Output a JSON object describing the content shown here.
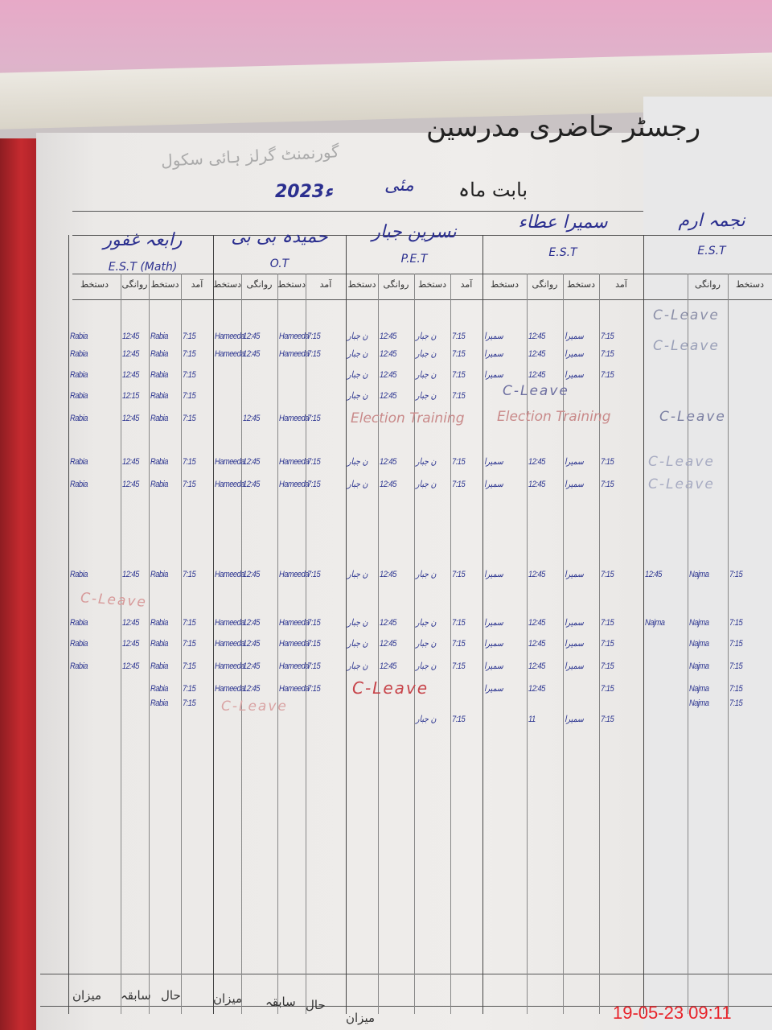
{
  "register": {
    "title": "رجسٹر حاضری مدرسین",
    "school": "گورنمنٹ گرلز ہائی سکول",
    "month_label": "بابت ماہ",
    "month": "مئی",
    "year": "2023ء"
  },
  "sub_headers": [
    "دستخط",
    "روانگی",
    "دستخط",
    "آمد"
  ],
  "teachers": [
    {
      "name": "رابعہ غفور",
      "designation": "E.S.T (Math)"
    },
    {
      "name": "حمیدہ بی بی",
      "designation": "O.T"
    },
    {
      "name": "نسرین جبار",
      "designation": "P.E.T"
    },
    {
      "name": "سمیرا عطاء",
      "designation": "E.S.T"
    },
    {
      "name": "نجمہ ارم",
      "designation": "E.S.T"
    }
  ],
  "rows": [
    [
      "Rabia",
      "12:45",
      "Rabia",
      "7:15",
      "Hameeda",
      "12:45",
      "Hameeda",
      "7:15",
      "ن جبار",
      "12:45",
      "ن جبار",
      "7:15",
      "سمیرا",
      "12:45",
      "سمیرا",
      "7:15",
      "",
      "",
      ""
    ],
    [
      "Rabia",
      "12:45",
      "Rabia",
      "7:15",
      "Hameeda",
      "12:45",
      "Hameeda",
      "7:15",
      "ن جبار",
      "12:45",
      "ن جبار",
      "7:15",
      "سمیرا",
      "12:45",
      "سمیرا",
      "7:15",
      "",
      "",
      ""
    ],
    [
      "Rabia",
      "12:45",
      "Rabia",
      "7:15",
      "",
      "",
      "",
      "",
      "ن جبار",
      "12:45",
      "ن جبار",
      "7:15",
      "سمیرا",
      "12:45",
      "سمیرا",
      "7:15",
      "",
      "",
      ""
    ],
    [
      "Rabia",
      "12:15",
      "Rabia",
      "7:15",
      "",
      "",
      "",
      "",
      "ن جبار",
      "12:45",
      "ن جبار",
      "7:15",
      "",
      "",
      "",
      "",
      "",
      "",
      ""
    ],
    [
      "Rabia",
      "12:45",
      "Rabia",
      "7:15",
      "",
      "12:45",
      "Hameeda",
      "7:15",
      "",
      "",
      "",
      "",
      "",
      "",
      "",
      "",
      "",
      "",
      ""
    ],
    [
      "Rabia",
      "12:45",
      "Rabia",
      "7:15",
      "Hameeda",
      "12:45",
      "Hameeda",
      "7:15",
      "ن جبار",
      "12:45",
      "ن جبار",
      "7:15",
      "سمیرا",
      "12:45",
      "سمیرا",
      "7:15",
      "",
      "",
      ""
    ],
    [
      "Rabia",
      "12:45",
      "Rabia",
      "7:15",
      "Hameeda",
      "12:45",
      "Hameeda",
      "7:15",
      "ن جبار",
      "12:45",
      "ن جبار",
      "7:15",
      "سمیرا",
      "12:45",
      "سمیرا",
      "7:15",
      "",
      "",
      ""
    ],
    [
      "Rabia",
      "12:45",
      "Rabia",
      "7:15",
      "Hameeda",
      "12:45",
      "Hameeda",
      "7:15",
      "ن جبار",
      "12:45",
      "ن جبار",
      "7:15",
      "سمیرا",
      "12:45",
      "سمیرا",
      "7:15",
      "12:45",
      "Najma",
      "7:15"
    ],
    [
      "Rabia",
      "12:45",
      "Rabia",
      "7:15",
      "Hameeda",
      "12:45",
      "Hameeda",
      "7:15",
      "ن جبار",
      "12:45",
      "ن جبار",
      "7:15",
      "سمیرا",
      "12:45",
      "سمیرا",
      "7:15",
      "Najma",
      "Najma",
      "7:15"
    ],
    [
      "Rabia",
      "12:45",
      "Rabia",
      "7:15",
      "Hameeda",
      "12:45",
      "Hameeda",
      "7:15",
      "ن جبار",
      "12:45",
      "ن جبار",
      "7:15",
      "سمیرا",
      "12:45",
      "سمیرا",
      "7:15",
      "",
      "Najma",
      "7:15"
    ],
    [
      "Rabia",
      "12:45",
      "Rabia",
      "7:15",
      "Hameeda",
      "12:45",
      "Hameeda",
      "7:15",
      "ن جبار",
      "12:45",
      "ن جبار",
      "7:15",
      "سمیرا",
      "12:45",
      "سمیرا",
      "7:15",
      "",
      "Najma",
      "7:15"
    ],
    [
      "",
      "",
      "Rabia",
      "7:15",
      "Hameeda",
      "12:45",
      "Hameeda",
      "7:15",
      "",
      "",
      "",
      "",
      "سمیرا",
      "12:45",
      "",
      "7:15",
      "",
      "Najma",
      "7:15"
    ],
    [
      "",
      "",
      "Rabia",
      "7:15",
      "",
      "",
      "",
      "",
      "",
      "",
      "",
      "",
      "",
      "",
      "",
      "",
      "",
      "Najma",
      "7:15"
    ],
    [
      "",
      "",
      "",
      "",
      "",
      "",
      "",
      "",
      "",
      "",
      "ن جبار",
      "7:15",
      "",
      "11",
      "سمیرا",
      "7:15",
      "",
      "",
      ""
    ]
  ],
  "notes": [
    {
      "text": "C-Leave",
      "color": "#8b8fa8"
    },
    {
      "text": "C-Leave",
      "color": "#9aa0b8"
    },
    {
      "text": "C-Leave",
      "color": "#6d6fa0"
    },
    {
      "text": "Election Training",
      "color": "#c98a8a"
    },
    {
      "text": "Election Training",
      "color": "#c98a8a"
    },
    {
      "text": "C-Leave",
      "color": "#7b7fa2"
    },
    {
      "text": "C-Leave",
      "color": "#a7abc2"
    },
    {
      "text": "C-Leave",
      "color": "#a7abc2"
    },
    {
      "text": "C-Leave",
      "color": "#d79a9a"
    },
    {
      "text": "C-Leave",
      "color": "#c7444a"
    },
    {
      "text": "C-Leave",
      "color": "#d9a3a3"
    }
  ],
  "footer": [
    "میزان",
    "سابقہ",
    "حال",
    "میزان",
    "سابقہ",
    "حال",
    "میزان"
  ],
  "timestamp": "19-05-23  09:11"
}
